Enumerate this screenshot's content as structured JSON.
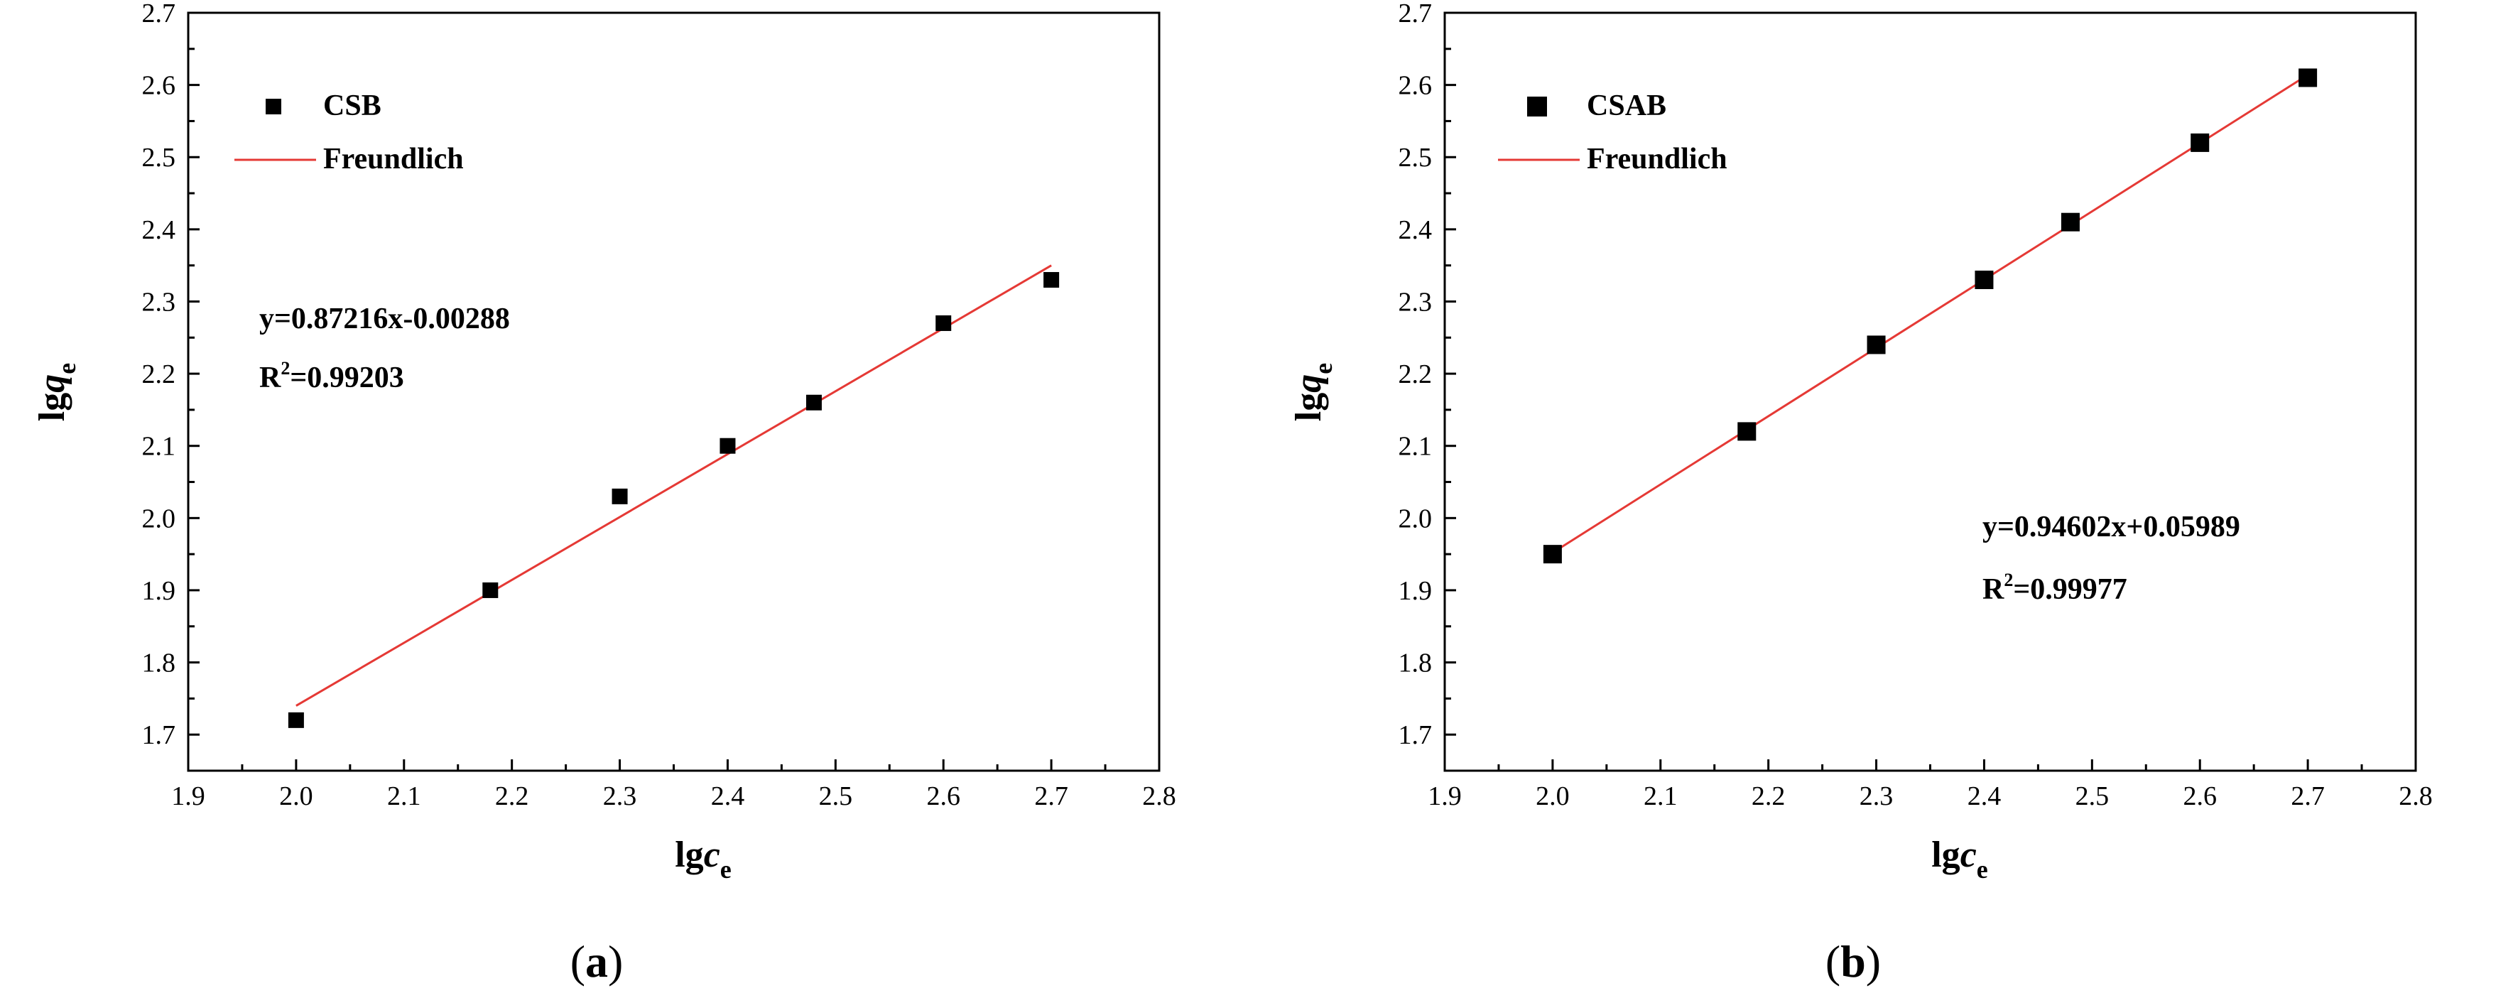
{
  "chart_data": [
    {
      "type": "scatter",
      "caption": {
        "open": "(",
        "letter": "a",
        "close": ")"
      },
      "xlabel": {
        "prefix": "lg",
        "var": "c",
        "sub": "e"
      },
      "ylabel": {
        "prefix": "lg",
        "var": "q",
        "sub": "e"
      },
      "xlim": [
        1.9,
        2.8
      ],
      "ylim": [
        1.65,
        2.7
      ],
      "xticks": [
        "1.9",
        "2.0",
        "2.1",
        "2.2",
        "2.3",
        "2.4",
        "2.5",
        "2.6",
        "2.7",
        "2.8"
      ],
      "yticks": [
        "1.7",
        "1.8",
        "1.9",
        "2.0",
        "2.1",
        "2.2",
        "2.3",
        "2.4",
        "2.5",
        "2.6",
        "2.7"
      ],
      "series": [
        {
          "name": "CSB",
          "kind": "points",
          "color": "#000000",
          "x": [
            2.0,
            2.18,
            2.3,
            2.4,
            2.48,
            2.6,
            2.7
          ],
          "y": [
            1.72,
            1.9,
            2.03,
            2.1,
            2.16,
            2.27,
            2.33
          ]
        },
        {
          "name": "Freundlich",
          "kind": "fit",
          "color": "#e53935",
          "x": [
            2.0,
            2.7
          ],
          "y": [
            1.74,
            2.35
          ]
        }
      ],
      "annotations": [
        {
          "text": "y=0.87216x-0.00288",
          "kind": "equation"
        },
        {
          "text": "R",
          "sup": "2",
          "rest": "=0.99203",
          "kind": "r2"
        }
      ],
      "legend_position": "top-left",
      "grid": false
    },
    {
      "type": "scatter",
      "caption": {
        "open": "(",
        "letter": "b",
        "close": ")"
      },
      "xlabel": {
        "prefix": "lg",
        "var": "c",
        "sub": "e"
      },
      "ylabel": {
        "prefix": "lg",
        "var": "q",
        "sub": "e"
      },
      "xlim": [
        1.9,
        2.8
      ],
      "ylim": [
        1.65,
        2.7
      ],
      "xticks": [
        "1.9",
        "2.0",
        "2.1",
        "2.2",
        "2.3",
        "2.4",
        "2.5",
        "2.6",
        "2.7",
        "2.8"
      ],
      "yticks": [
        "1.7",
        "1.8",
        "1.9",
        "2.0",
        "2.1",
        "2.2",
        "2.3",
        "2.4",
        "2.5",
        "2.6",
        "2.7"
      ],
      "series": [
        {
          "name": "CSAB",
          "kind": "points",
          "color": "#000000",
          "x": [
            2.0,
            2.18,
            2.3,
            2.4,
            2.48,
            2.6,
            2.7
          ],
          "y": [
            1.95,
            2.12,
            2.24,
            2.33,
            2.41,
            2.52,
            2.61
          ]
        },
        {
          "name": "Freundlich",
          "kind": "fit",
          "color": "#e53935",
          "x": [
            2.0,
            2.7
          ],
          "y": [
            1.952,
            2.614
          ]
        }
      ],
      "annotations": [
        {
          "text": "y=0.94602x+0.05989",
          "kind": "equation"
        },
        {
          "text": "R",
          "sup": "2",
          "rest": "=0.99977",
          "kind": "r2"
        }
      ],
      "legend_position": "top-left",
      "grid": false
    }
  ]
}
